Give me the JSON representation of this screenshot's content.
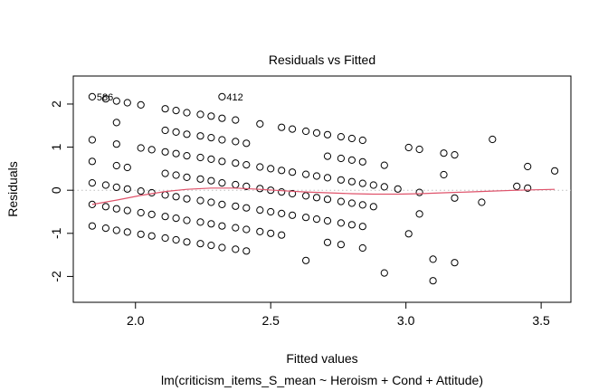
{
  "chart_data": {
    "type": "scatter",
    "title": "Residuals vs Fitted",
    "xlabel": "Fitted values",
    "subtitle": "lm(criticism_items_S_mean ~ Heroism + Cond + Attitude)",
    "ylabel": "Residuals",
    "xlim": [
      1.77,
      3.61
    ],
    "ylim": [
      -2.6,
      2.65
    ],
    "x_ticks": [
      2.0,
      2.5,
      3.0,
      3.5
    ],
    "x_tick_labels": [
      "2.0",
      "2.5",
      "3.0",
      "3.5"
    ],
    "y_ticks": [
      -2,
      -1,
      0,
      1,
      2
    ],
    "y_tick_labels": [
      "-2",
      "-1",
      "0",
      "1",
      "2"
    ],
    "reference_line": {
      "y": 0,
      "style": "dotted",
      "color": "#bdbdbd"
    },
    "smoother_color": "#df536b",
    "point_color": "#000000",
    "grid": false,
    "series": [
      {
        "points": [
          [
            1.84,
            2.17
          ],
          [
            1.84,
            1.17
          ],
          [
            1.84,
            0.67
          ],
          [
            1.84,
            0.17
          ],
          [
            1.84,
            -0.33
          ],
          [
            1.84,
            -0.83
          ],
          [
            1.89,
            2.12
          ],
          [
            1.89,
            0.12
          ],
          [
            1.89,
            -0.38
          ],
          [
            1.89,
            -0.88
          ],
          [
            1.93,
            2.07
          ],
          [
            1.93,
            1.57
          ],
          [
            1.93,
            1.07
          ],
          [
            1.93,
            0.57
          ],
          [
            1.93,
            0.07
          ],
          [
            1.93,
            -0.43
          ],
          [
            1.93,
            -0.93
          ],
          [
            1.97,
            2.03
          ],
          [
            1.97,
            0.53
          ],
          [
            1.97,
            0.03
          ],
          [
            1.97,
            -0.47
          ],
          [
            1.97,
            -0.97
          ],
          [
            2.02,
            1.98
          ],
          [
            2.02,
            0.98
          ],
          [
            2.02,
            -0.02
          ],
          [
            2.02,
            -0.52
          ],
          [
            2.02,
            -1.02
          ],
          [
            2.06,
            0.94
          ],
          [
            2.06,
            -0.06
          ],
          [
            2.06,
            -0.56
          ],
          [
            2.06,
            -1.06
          ],
          [
            2.11,
            1.89
          ],
          [
            2.11,
            1.39
          ],
          [
            2.11,
            0.89
          ],
          [
            2.11,
            0.39
          ],
          [
            2.11,
            -0.11
          ],
          [
            2.11,
            -0.61
          ],
          [
            2.11,
            -1.11
          ],
          [
            2.15,
            1.85
          ],
          [
            2.15,
            1.35
          ],
          [
            2.15,
            0.85
          ],
          [
            2.15,
            0.35
          ],
          [
            2.15,
            -0.15
          ],
          [
            2.15,
            -0.65
          ],
          [
            2.15,
            -1.15
          ],
          [
            2.19,
            1.8
          ],
          [
            2.19,
            1.3
          ],
          [
            2.19,
            0.8
          ],
          [
            2.19,
            0.3
          ],
          [
            2.19,
            -0.2
          ],
          [
            2.19,
            -0.7
          ],
          [
            2.19,
            -1.2
          ],
          [
            2.24,
            1.76
          ],
          [
            2.24,
            1.26
          ],
          [
            2.24,
            0.76
          ],
          [
            2.24,
            0.26
          ],
          [
            2.24,
            -0.24
          ],
          [
            2.24,
            -0.74
          ],
          [
            2.24,
            -1.24
          ],
          [
            2.28,
            1.72
          ],
          [
            2.28,
            1.22
          ],
          [
            2.28,
            0.72
          ],
          [
            2.28,
            0.22
          ],
          [
            2.28,
            -0.28
          ],
          [
            2.28,
            -0.78
          ],
          [
            2.28,
            -1.28
          ],
          [
            2.32,
            2.17
          ],
          [
            2.32,
            1.67
          ],
          [
            2.32,
            1.17
          ],
          [
            2.32,
            0.67
          ],
          [
            2.32,
            0.17
          ],
          [
            2.32,
            -0.33
          ],
          [
            2.32,
            -0.83
          ],
          [
            2.32,
            -1.33
          ],
          [
            2.37,
            1.63
          ],
          [
            2.37,
            1.13
          ],
          [
            2.37,
            0.63
          ],
          [
            2.37,
            0.13
          ],
          [
            2.37,
            -0.37
          ],
          [
            2.37,
            -0.87
          ],
          [
            2.37,
            -1.37
          ],
          [
            2.41,
            1.09
          ],
          [
            2.41,
            0.59
          ],
          [
            2.41,
            0.09
          ],
          [
            2.41,
            -0.41
          ],
          [
            2.41,
            -0.91
          ],
          [
            2.41,
            -1.41
          ],
          [
            2.46,
            1.54
          ],
          [
            2.46,
            0.54
          ],
          [
            2.46,
            0.04
          ],
          [
            2.46,
            -0.46
          ],
          [
            2.46,
            -0.96
          ],
          [
            2.5,
            0.5
          ],
          [
            2.5,
            0.0
          ],
          [
            2.5,
            -0.5
          ],
          [
            2.5,
            -1.0
          ],
          [
            2.54,
            1.46
          ],
          [
            2.54,
            0.46
          ],
          [
            2.54,
            -0.04
          ],
          [
            2.54,
            -0.54
          ],
          [
            2.54,
            -1.04
          ],
          [
            2.58,
            1.42
          ],
          [
            2.58,
            0.42
          ],
          [
            2.58,
            -0.08
          ],
          [
            2.58,
            -0.58
          ],
          [
            2.63,
            1.37
          ],
          [
            2.63,
            0.37
          ],
          [
            2.63,
            -0.13
          ],
          [
            2.63,
            -0.63
          ],
          [
            2.63,
            -1.63
          ],
          [
            2.67,
            1.33
          ],
          [
            2.67,
            0.33
          ],
          [
            2.67,
            -0.17
          ],
          [
            2.67,
            -0.67
          ],
          [
            2.71,
            1.29
          ],
          [
            2.71,
            0.79
          ],
          [
            2.71,
            0.29
          ],
          [
            2.71,
            -0.21
          ],
          [
            2.71,
            -0.71
          ],
          [
            2.71,
            -1.21
          ],
          [
            2.76,
            1.24
          ],
          [
            2.76,
            0.74
          ],
          [
            2.76,
            0.24
          ],
          [
            2.76,
            -0.26
          ],
          [
            2.76,
            -0.76
          ],
          [
            2.76,
            -1.26
          ],
          [
            2.8,
            1.2
          ],
          [
            2.8,
            0.7
          ],
          [
            2.8,
            0.2
          ],
          [
            2.8,
            -0.3
          ],
          [
            2.8,
            -0.8
          ],
          [
            2.84,
            1.16
          ],
          [
            2.84,
            0.66
          ],
          [
            2.84,
            0.16
          ],
          [
            2.84,
            -0.34
          ],
          [
            2.84,
            -0.84
          ],
          [
            2.84,
            -1.34
          ],
          [
            2.88,
            0.12
          ],
          [
            2.88,
            -0.38
          ],
          [
            2.92,
            0.58
          ],
          [
            2.92,
            0.08
          ],
          [
            2.92,
            -1.92
          ],
          [
            2.97,
            0.03
          ],
          [
            3.01,
            0.99
          ],
          [
            3.01,
            -1.01
          ],
          [
            3.05,
            0.95
          ],
          [
            3.05,
            -0.05
          ],
          [
            3.05,
            -0.55
          ],
          [
            3.1,
            -1.6
          ],
          [
            3.1,
            -2.1
          ],
          [
            3.14,
            0.86
          ],
          [
            3.14,
            0.36
          ],
          [
            3.18,
            0.82
          ],
          [
            3.18,
            -0.18
          ],
          [
            3.18,
            -1.68
          ],
          [
            3.28,
            -0.28
          ],
          [
            3.32,
            1.18
          ],
          [
            3.41,
            0.09
          ],
          [
            3.45,
            0.55
          ],
          [
            3.45,
            0.05
          ],
          [
            3.55,
            0.45
          ]
        ]
      }
    ],
    "smoother": [
      [
        1.84,
        -0.33
      ],
      [
        1.93,
        -0.23
      ],
      [
        2.02,
        -0.12
      ],
      [
        2.11,
        -0.03
      ],
      [
        2.19,
        0.02
      ],
      [
        2.28,
        0.05
      ],
      [
        2.37,
        0.05
      ],
      [
        2.46,
        0.02
      ],
      [
        2.54,
        -0.01
      ],
      [
        2.63,
        -0.04
      ],
      [
        2.71,
        -0.06
      ],
      [
        2.8,
        -0.08
      ],
      [
        2.88,
        -0.09
      ],
      [
        2.97,
        -0.09
      ],
      [
        3.05,
        -0.08
      ],
      [
        3.14,
        -0.06
      ],
      [
        3.23,
        -0.04
      ],
      [
        3.32,
        -0.02
      ],
      [
        3.41,
        0.0
      ],
      [
        3.55,
        0.02
      ]
    ],
    "annotations": [
      {
        "text": "586",
        "x": 1.84,
        "y": 2.17
      },
      {
        "text": "412",
        "x": 2.32,
        "y": 2.17
      }
    ]
  }
}
